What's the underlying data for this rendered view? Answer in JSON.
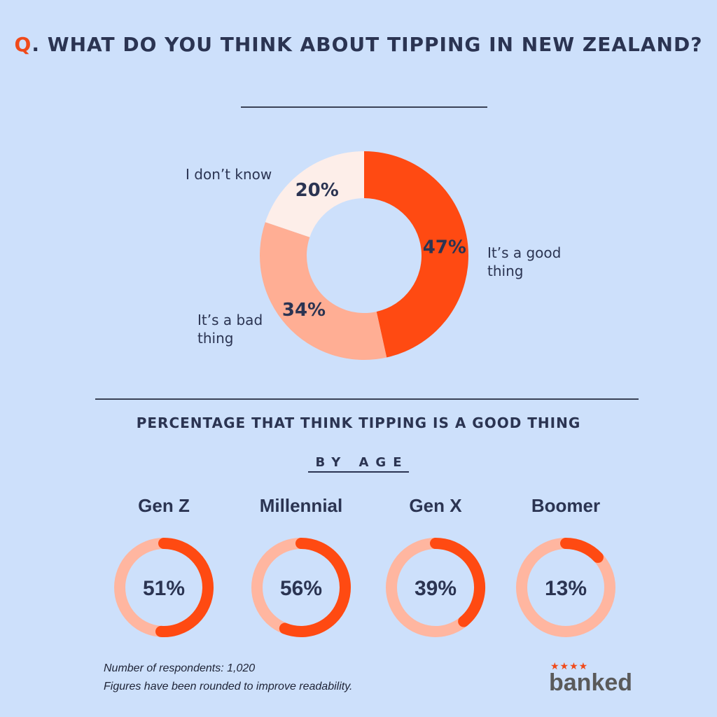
{
  "header": {
    "q_prefix": "Q",
    "title": ". WHAT DO YOU THINK ABOUT TIPPING IN NEW ZEALAND?"
  },
  "chart_data": [
    {
      "type": "pie",
      "title": "WHAT DO YOU THINK ABOUT TIPPING IN NEW ZEALAND?",
      "categories": [
        "It’s a good thing",
        "It’s a bad thing",
        "I don’t know"
      ],
      "values": [
        47,
        34,
        20
      ],
      "value_labels": [
        "47%",
        "34%",
        "20%"
      ],
      "colors": [
        "#ff4a12",
        "#ffae94",
        "#fdeee9"
      ]
    },
    {
      "type": "pie",
      "title": "PERCENTAGE THAT THINK TIPPING IS A GOOD THING",
      "subtitle": "BY AGE",
      "categories": [
        "Gen Z",
        "Millennial",
        "Gen X",
        "Boomer"
      ],
      "values": [
        51,
        56,
        39,
        13
      ],
      "value_labels": [
        "51%",
        "56%",
        "39%",
        "13%"
      ],
      "colors": {
        "filled": "#ff4a12",
        "track": "#ffb6a0"
      }
    }
  ],
  "labels": {
    "good": [
      "It’s a good",
      "thing"
    ],
    "bad": [
      "It’s a bad",
      "thing"
    ],
    "dont_know": "I don’t know"
  },
  "section2": {
    "title": "PERCENTAGE THAT THINK TIPPING IS A GOOD THING",
    "subtitle": "BY AGE"
  },
  "footnote": {
    "line1": "Number of respondents: 1,020",
    "line2": "Figures have been rounded to improve readability."
  },
  "logo": {
    "stars": "★★★★",
    "text": "banked"
  }
}
